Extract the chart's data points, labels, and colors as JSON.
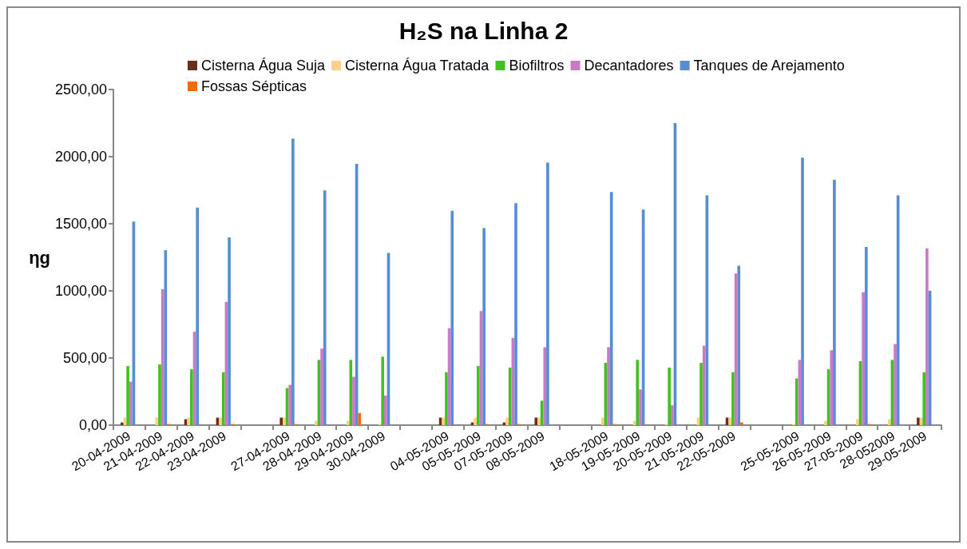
{
  "chart_data": {
    "type": "bar",
    "title": "H₂S na Linha 2",
    "ylabel": "ηg",
    "categories": [
      "20-04-2009",
      "21-04-2009",
      "22-04-2009",
      "23-04-2009",
      null,
      "27-04-2009",
      "28-04-2009",
      "29-04-2009",
      "30-04-2009",
      null,
      "04-05-2009",
      "05-05-2009",
      "07-05-2009",
      "08-05-2009",
      null,
      "18-05-2009",
      "19-05-2009",
      "20-05-2009",
      "21-05-2009",
      "22-05-2009",
      null,
      "25-05-2009",
      "26-05-2009",
      "27-05-2009",
      "28-052009",
      "29-05-2009"
    ],
    "series": [
      {
        "name": "Cisterna Água Suja",
        "color": "#6b2e1a",
        "values": [
          20,
          0,
          44,
          56,
          null,
          56,
          0,
          0,
          0,
          null,
          56,
          20,
          20,
          56,
          null,
          0,
          0,
          0,
          0,
          56,
          null,
          0,
          0,
          0,
          0,
          56
        ]
      },
      {
        "name": "Cisterna Água Tratada",
        "color": "#fcd088",
        "values": [
          56,
          56,
          56,
          56,
          null,
          56,
          32,
          32,
          8,
          null,
          56,
          56,
          56,
          56,
          null,
          56,
          32,
          8,
          56,
          56,
          null,
          8,
          32,
          44,
          44,
          56
        ]
      },
      {
        "name": "Biofiltros",
        "color": "#3fc41f",
        "values": [
          440,
          452,
          416,
          394,
          null,
          276,
          486,
          486,
          510,
          null,
          394,
          440,
          428,
          182,
          null,
          464,
          486,
          428,
          464,
          394,
          null,
          348,
          416,
          476,
          486,
          394
        ]
      },
      {
        "name": "Decantadores",
        "color": "#cc77c8",
        "values": [
          324,
          1012,
          696,
          918,
          null,
          300,
          570,
          360,
          220,
          null,
          722,
          850,
          650,
          580,
          null,
          580,
          266,
          148,
          592,
          1130,
          null,
          486,
          558,
          990,
          604,
          1316
        ]
      },
      {
        "name": "Tanques de Arejamento",
        "color": "#558ed5",
        "values": [
          1516,
          1304,
          1620,
          1398,
          null,
          2134,
          1748,
          1946,
          1282,
          null,
          1596,
          1468,
          1654,
          1956,
          null,
          1736,
          1606,
          2250,
          1712,
          1188,
          null,
          1992,
          1828,
          1328,
          1712,
          1002
        ]
      },
      {
        "name": "Fossas Sépticas",
        "color": "#f26a0a",
        "values": [
          0,
          8,
          0,
          8,
          null,
          8,
          0,
          90,
          0,
          null,
          0,
          8,
          8,
          0,
          null,
          8,
          0,
          0,
          0,
          20,
          null,
          0,
          0,
          8,
          0,
          0
        ]
      }
    ],
    "ylim": [
      0,
      2500
    ],
    "yticks": [
      {
        "value": 0,
        "label": "0,00"
      },
      {
        "value": 500,
        "label": "500,00"
      },
      {
        "value": 1000,
        "label": "1000,00"
      },
      {
        "value": 1500,
        "label": "1500,00"
      },
      {
        "value": 2000,
        "label": "2000,00"
      },
      {
        "value": 2500,
        "label": "2500,00"
      }
    ],
    "grid": false,
    "legend": "top"
  }
}
